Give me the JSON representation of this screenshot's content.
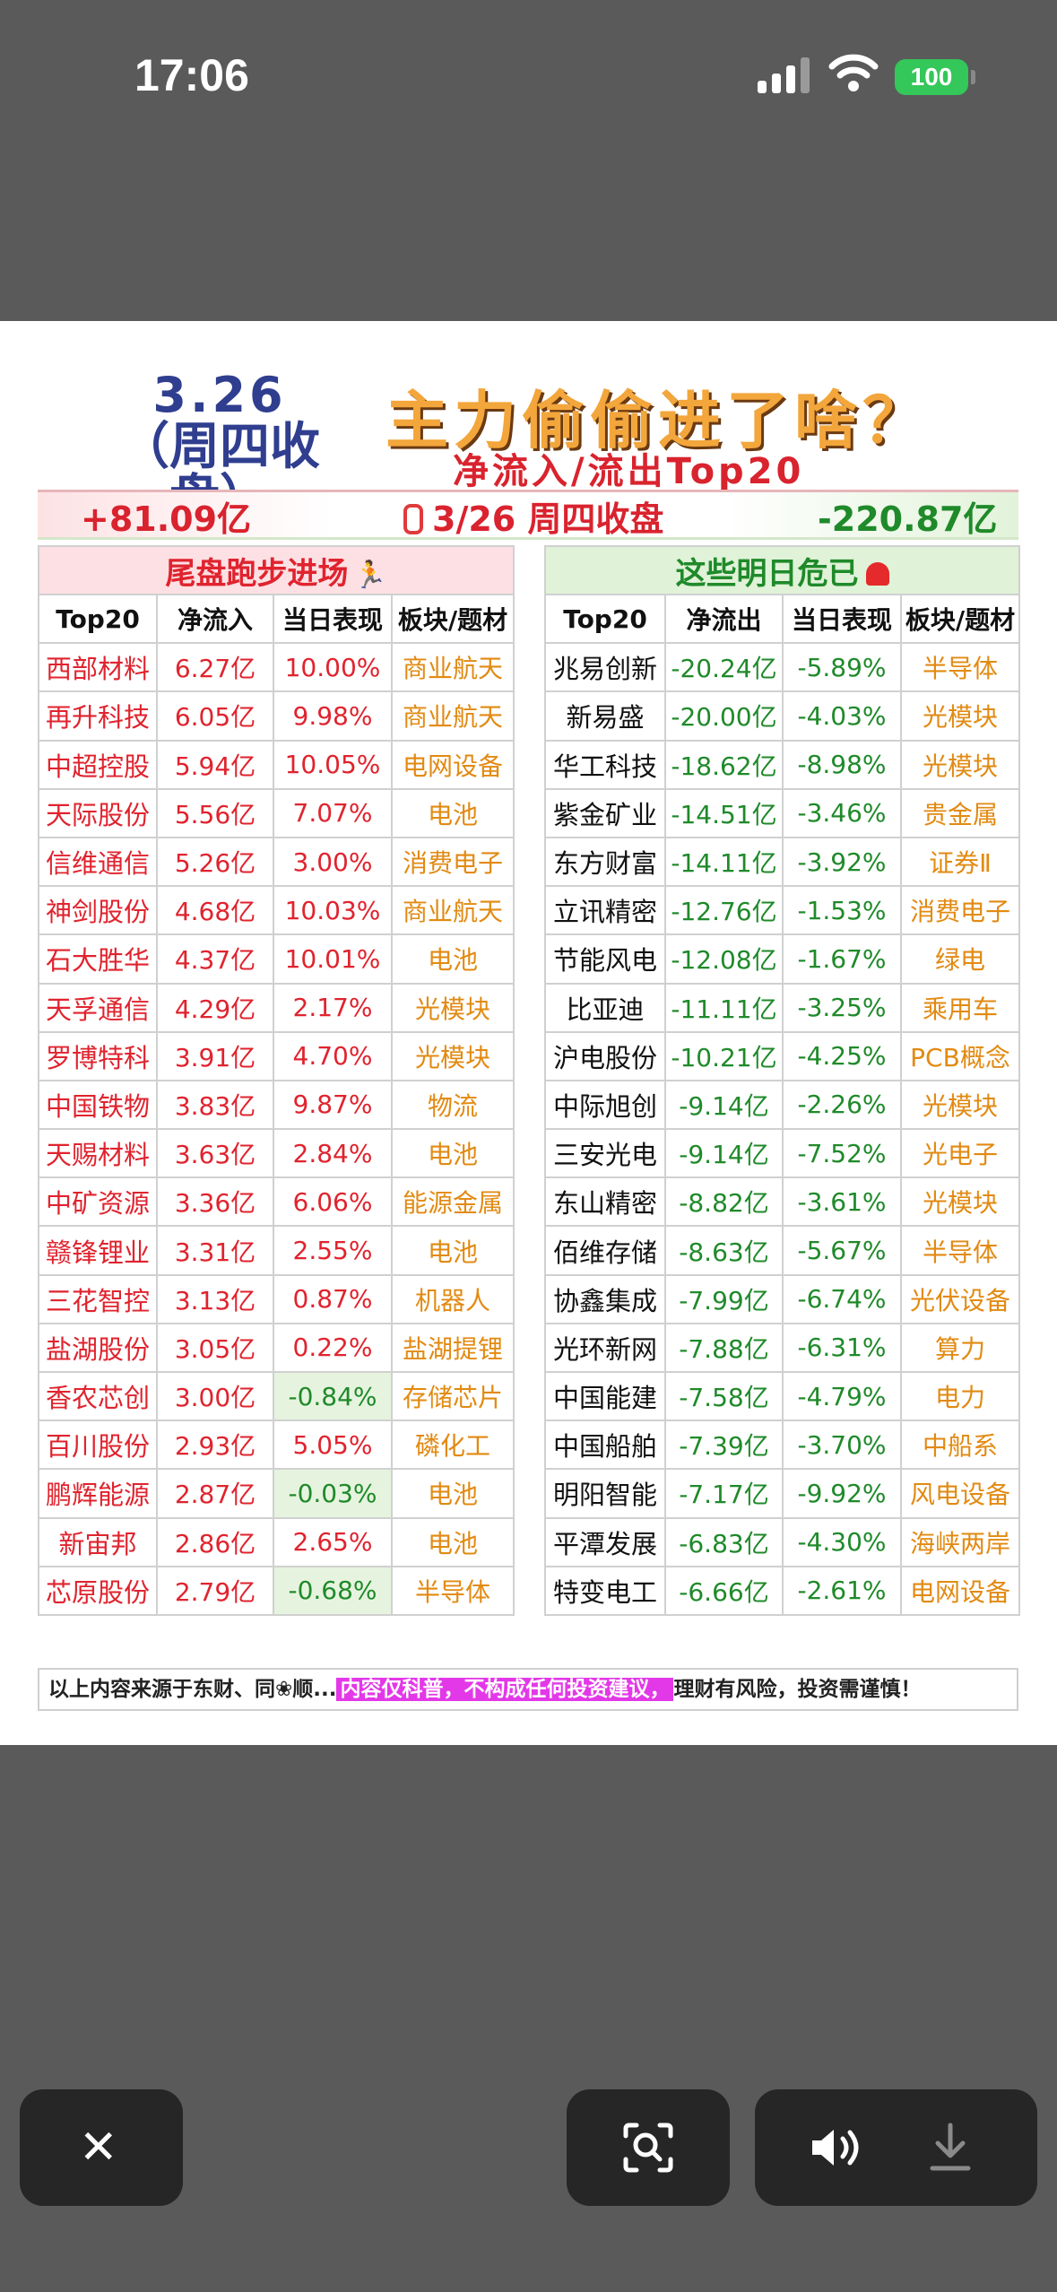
{
  "status": {
    "time": "17:06",
    "battery": "100"
  },
  "poster": {
    "date_line1": "3.26",
    "date_line2": "（周四收盘）",
    "title": "主力偷偷进了啥？",
    "subtitle": "净流入/流出Top20",
    "inflow_total": "+81.09亿",
    "summary_date": "3/26 周四收盘",
    "outflow_total": "-220.87亿",
    "left": {
      "heading": "尾盘跑步进场",
      "columns": [
        "Top20",
        "净流入",
        "当日表现",
        "板块/题材"
      ],
      "rows": [
        {
          "name": "西部材料",
          "flow": "6.27亿",
          "perf": "10.00%",
          "sector": "商业航天"
        },
        {
          "name": "再升科技",
          "flow": "6.05亿",
          "perf": "9.98%",
          "sector": "商业航天"
        },
        {
          "name": "中超控股",
          "flow": "5.94亿",
          "perf": "10.05%",
          "sector": "电网设备"
        },
        {
          "name": "天际股份",
          "flow": "5.56亿",
          "perf": "7.07%",
          "sector": "电池"
        },
        {
          "name": "信维通信",
          "flow": "5.26亿",
          "perf": "3.00%",
          "sector": "消费电子"
        },
        {
          "name": "神剑股份",
          "flow": "4.68亿",
          "perf": "10.03%",
          "sector": "商业航天"
        },
        {
          "name": "石大胜华",
          "flow": "4.37亿",
          "perf": "10.01%",
          "sector": "电池"
        },
        {
          "name": "天孚通信",
          "flow": "4.29亿",
          "perf": "2.17%",
          "sector": "光模块"
        },
        {
          "name": "罗博特科",
          "flow": "3.91亿",
          "perf": "4.70%",
          "sector": "光模块"
        },
        {
          "name": "中国铁物",
          "flow": "3.83亿",
          "perf": "9.87%",
          "sector": "物流"
        },
        {
          "name": "天赐材料",
          "flow": "3.63亿",
          "perf": "2.84%",
          "sector": "电池"
        },
        {
          "name": "中矿资源",
          "flow": "3.36亿",
          "perf": "6.06%",
          "sector": "能源金属"
        },
        {
          "name": "赣锋锂业",
          "flow": "3.31亿",
          "perf": "2.55%",
          "sector": "电池"
        },
        {
          "name": "三花智控",
          "flow": "3.13亿",
          "perf": "0.87%",
          "sector": "机器人"
        },
        {
          "name": "盐湖股份",
          "flow": "3.05亿",
          "perf": "0.22%",
          "sector": "盐湖提锂"
        },
        {
          "name": "香农芯创",
          "flow": "3.00亿",
          "perf": "-0.84%",
          "sector": "存储芯片"
        },
        {
          "name": "百川股份",
          "flow": "2.93亿",
          "perf": "5.05%",
          "sector": "磷化工"
        },
        {
          "name": "鹏辉能源",
          "flow": "2.87亿",
          "perf": "-0.03%",
          "sector": "电池"
        },
        {
          "name": "新宙邦",
          "flow": "2.86亿",
          "perf": "2.65%",
          "sector": "电池"
        },
        {
          "name": "芯原股份",
          "flow": "2.79亿",
          "perf": "-0.68%",
          "sector": "半导体"
        }
      ]
    },
    "right": {
      "heading": "这些明日危已",
      "columns": [
        "Top20",
        "净流出",
        "当日表现",
        "板块/题材"
      ],
      "rows": [
        {
          "name": "兆易创新",
          "flow": "-20.24亿",
          "perf": "-5.89%",
          "sector": "半导体"
        },
        {
          "name": "新易盛",
          "flow": "-20.00亿",
          "perf": "-4.03%",
          "sector": "光模块"
        },
        {
          "name": "华工科技",
          "flow": "-18.62亿",
          "perf": "-8.98%",
          "sector": "光模块"
        },
        {
          "name": "紫金矿业",
          "flow": "-14.51亿",
          "perf": "-3.46%",
          "sector": "贵金属"
        },
        {
          "name": "东方财富",
          "flow": "-14.11亿",
          "perf": "-3.92%",
          "sector": "证券Ⅱ"
        },
        {
          "name": "立讯精密",
          "flow": "-12.76亿",
          "perf": "-1.53%",
          "sector": "消费电子"
        },
        {
          "name": "节能风电",
          "flow": "-12.08亿",
          "perf": "-1.67%",
          "sector": "绿电"
        },
        {
          "name": "比亚迪",
          "flow": "-11.11亿",
          "perf": "-3.25%",
          "sector": "乘用车"
        },
        {
          "name": "沪电股份",
          "flow": "-10.21亿",
          "perf": "-4.25%",
          "sector": "PCB概念"
        },
        {
          "name": "中际旭创",
          "flow": "-9.14亿",
          "perf": "-2.26%",
          "sector": "光模块"
        },
        {
          "name": "三安光电",
          "flow": "-9.14亿",
          "perf": "-7.52%",
          "sector": "光电子"
        },
        {
          "name": "东山精密",
          "flow": "-8.82亿",
          "perf": "-3.61%",
          "sector": "光模块"
        },
        {
          "name": "佰维存储",
          "flow": "-8.63亿",
          "perf": "-5.67%",
          "sector": "半导体"
        },
        {
          "name": "协鑫集成",
          "flow": "-7.99亿",
          "perf": "-6.74%",
          "sector": "光伏设备"
        },
        {
          "name": "光环新网",
          "flow": "-7.88亿",
          "perf": "-6.31%",
          "sector": "算力"
        },
        {
          "name": "中国能建",
          "flow": "-7.58亿",
          "perf": "-4.79%",
          "sector": "电力"
        },
        {
          "name": "中国船舶",
          "flow": "-7.39亿",
          "perf": "-3.70%",
          "sector": "中船系"
        },
        {
          "name": "明阳智能",
          "flow": "-7.17亿",
          "perf": "-9.92%",
          "sector": "风电设备"
        },
        {
          "name": "平潭发展",
          "flow": "-6.83亿",
          "perf": "-4.30%",
          "sector": "海峡两岸"
        },
        {
          "name": "特变电工",
          "flow": "-6.66亿",
          "perf": "-2.61%",
          "sector": "电网设备"
        }
      ]
    },
    "disclaimer_pre": "以上内容来源于东财、同❀顺...",
    "disclaimer_highlight": "内容仅科普，不构成任何投资建议，",
    "disclaimer_post": "理财有风险，投资需谨慎！"
  },
  "icons": {
    "close": "close-icon",
    "scan": "visual-lookup-icon",
    "volume": "speaker-icon",
    "download": "download-icon"
  }
}
